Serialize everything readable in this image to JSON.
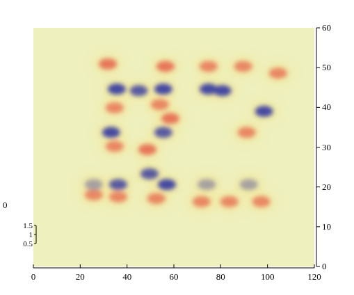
{
  "chart_data": {
    "type": "heatmap",
    "x": [
      31.8,
      34.7,
      34.7,
      25.8,
      36.2,
      56.4,
      54.0,
      58.5,
      48.7,
      52.5,
      74.8,
      89.6,
      104.5,
      71.8,
      83.7,
      97.3,
      91.1,
      35.6,
      45.0,
      55.5,
      74.8,
      80.7,
      98.5,
      33.2,
      55.5,
      49.6,
      57.0,
      36.2,
      25.8,
      74.0,
      92.0
    ],
    "y": [
      50.9,
      39.9,
      30.2,
      18.0,
      17.5,
      50.3,
      40.7,
      37.2,
      29.4,
      17.1,
      50.3,
      50.3,
      48.6,
      16.3,
      16.3,
      16.3,
      33.7,
      44.6,
      44.2,
      44.6,
      44.6,
      44.2,
      39.0,
      33.7,
      33.7,
      23.3,
      20.6,
      20.6,
      20.6,
      20.6,
      20.6
    ],
    "values": [
      1.35,
      1.3,
      1.3,
      1.3,
      1.3,
      1.35,
      1.3,
      1.35,
      1.35,
      1.3,
      1.3,
      1.3,
      1.3,
      1.3,
      1.3,
      1.3,
      1.3,
      0.55,
      0.6,
      0.55,
      0.55,
      0.55,
      0.55,
      0.55,
      0.6,
      0.6,
      0.55,
      0.6,
      0.8,
      0.8,
      0.8
    ],
    "xlim": [
      0,
      120
    ],
    "xticks": [
      0,
      20,
      40,
      60,
      80,
      100,
      120
    ],
    "ylim": [
      0,
      60
    ],
    "yticks": [
      0,
      10,
      20,
      30,
      40,
      50,
      60
    ],
    "zlim": [
      0.5,
      1.5
    ],
    "zticks": [
      0.5,
      1,
      1.5
    ],
    "annotation": "0"
  }
}
